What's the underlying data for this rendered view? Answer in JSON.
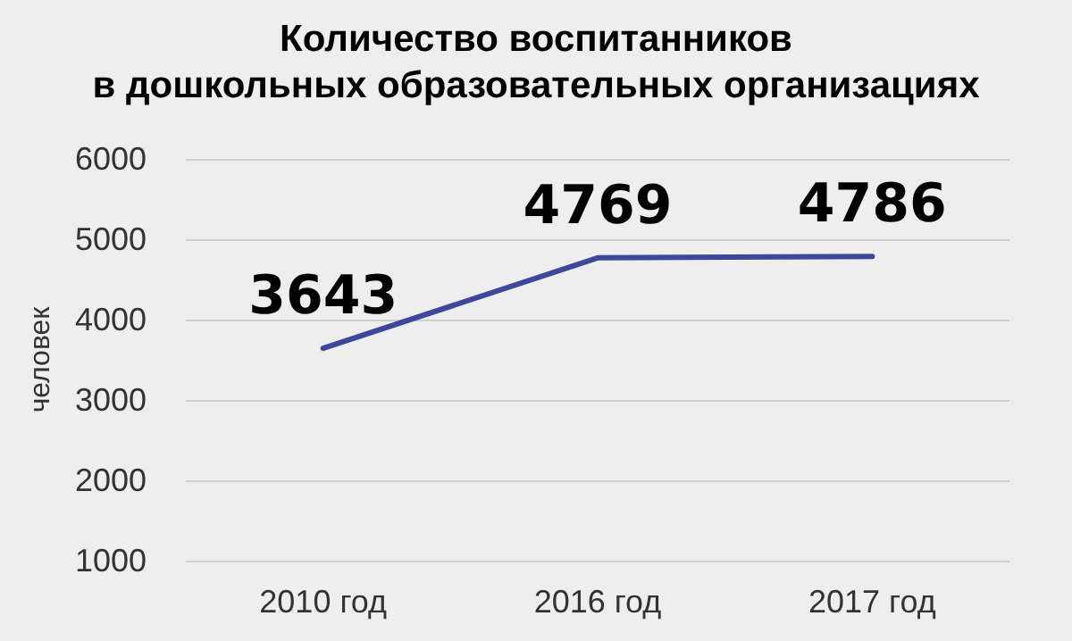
{
  "chart_data": {
    "type": "line",
    "title": "Количество воспитанников\nв дошкольных образовательных организациях",
    "ylabel": "человек",
    "categories": [
      "2010 год",
      "2016 год",
      "2017 год"
    ],
    "series": [
      {
        "color": "#3f479b",
        "values": [
          3643,
          4769,
          4786
        ]
      }
    ],
    "ylim": [
      1000,
      6000
    ],
    "yticks": [
      1000,
      2000,
      3000,
      4000,
      5000,
      6000
    ],
    "grid": "y",
    "data_labels": true,
    "marker": "none",
    "line_style": "solid"
  }
}
